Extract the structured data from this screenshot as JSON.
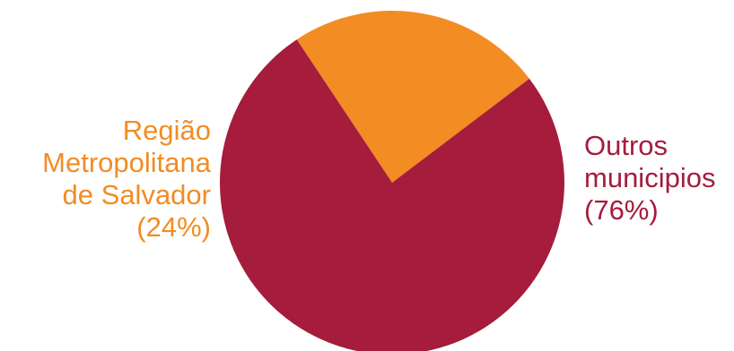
{
  "chart_data": {
    "type": "pie",
    "start_angle_deg": 236.4,
    "direction": "clockwise",
    "slices": [
      {
        "key": "rms",
        "label_lines": [
          "Região",
          "Metropolitana",
          "de Salvador",
          "(24%)"
        ],
        "value": 24,
        "color": "#f28c23"
      },
      {
        "key": "outros",
        "label_lines": [
          "Outros",
          "municipios",
          "(76%)"
        ],
        "value": 76,
        "color": "#a51c3c"
      }
    ]
  }
}
